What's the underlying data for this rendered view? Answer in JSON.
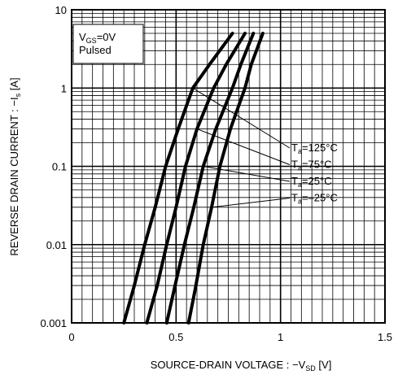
{
  "chart_data": {
    "type": "line",
    "x_label": {
      "main": "SOURCE-DRAIN VOLTAGE : −V",
      "sub": "SD",
      "tail": " [V]"
    },
    "y_label": {
      "main": "REVERSE DRAIN CURRENT : −I",
      "sub": "s",
      "tail": " [A]"
    },
    "condition": {
      "main": "V",
      "sub": "GS",
      "tail": "=0V",
      "line2": "Pulsed"
    },
    "xlim": [
      0,
      1.5
    ],
    "xticks": [
      0,
      0.5,
      1,
      1.5
    ],
    "x_minor_ticks": [
      0.05,
      0.1,
      0.15,
      0.2,
      0.25,
      0.3,
      0.35,
      0.4,
      0.45,
      0.55,
      0.6,
      0.65,
      0.7,
      0.75,
      0.8,
      0.85,
      0.9,
      0.95,
      1.05,
      1.1,
      1.15,
      1.2,
      1.25,
      1.3,
      1.35,
      1.4,
      1.45
    ],
    "ylim": [
      0.001,
      10
    ],
    "yticks": [
      0.001,
      0.01,
      0.1,
      1,
      10
    ],
    "y_minor_ticks": [
      0.002,
      0.003,
      0.004,
      0.005,
      0.006,
      0.007,
      0.008,
      0.009,
      0.02,
      0.03,
      0.04,
      0.05,
      0.06,
      0.07,
      0.08,
      0.09,
      0.2,
      0.3,
      0.4,
      0.5,
      0.6,
      0.7,
      0.8,
      0.9,
      2,
      3,
      4,
      5,
      6,
      7,
      8,
      9
    ],
    "y_scale": "log",
    "grid": true,
    "series": [
      {
        "name": {
          "main": "T",
          "sub": "a",
          "tail": "=125°C"
        },
        "color": "#000000",
        "x": [
          0.25,
          0.3,
          0.35,
          0.4,
          0.45,
          0.51,
          0.58,
          0.66,
          0.77
        ],
        "values": [
          0.001,
          0.003,
          0.01,
          0.03,
          0.1,
          0.3,
          1,
          2,
          5
        ]
      },
      {
        "name": {
          "main": "T",
          "sub": "a",
          "tail": "=75°C"
        },
        "color": "#000000",
        "x": [
          0.36,
          0.41,
          0.455,
          0.5,
          0.545,
          0.6,
          0.68,
          0.74,
          0.83
        ],
        "values": [
          0.001,
          0.003,
          0.01,
          0.03,
          0.1,
          0.3,
          1,
          2,
          5
        ]
      },
      {
        "name": {
          "main": "T",
          "sub": "a",
          "tail": "=25°C"
        },
        "color": "#000000",
        "x": [
          0.455,
          0.495,
          0.54,
          0.585,
          0.63,
          0.69,
          0.77,
          0.81,
          0.87
        ],
        "values": [
          0.001,
          0.003,
          0.01,
          0.03,
          0.1,
          0.3,
          1,
          2,
          5
        ]
      },
      {
        "name": {
          "main": "T",
          "sub": "a",
          "tail": "=–25°C"
        },
        "color": "#000000",
        "x": [
          0.56,
          0.595,
          0.63,
          0.67,
          0.71,
          0.76,
          0.83,
          0.86,
          0.915
        ],
        "values": [
          0.001,
          0.003,
          0.01,
          0.03,
          0.1,
          0.3,
          1,
          2,
          5
        ]
      }
    ]
  }
}
